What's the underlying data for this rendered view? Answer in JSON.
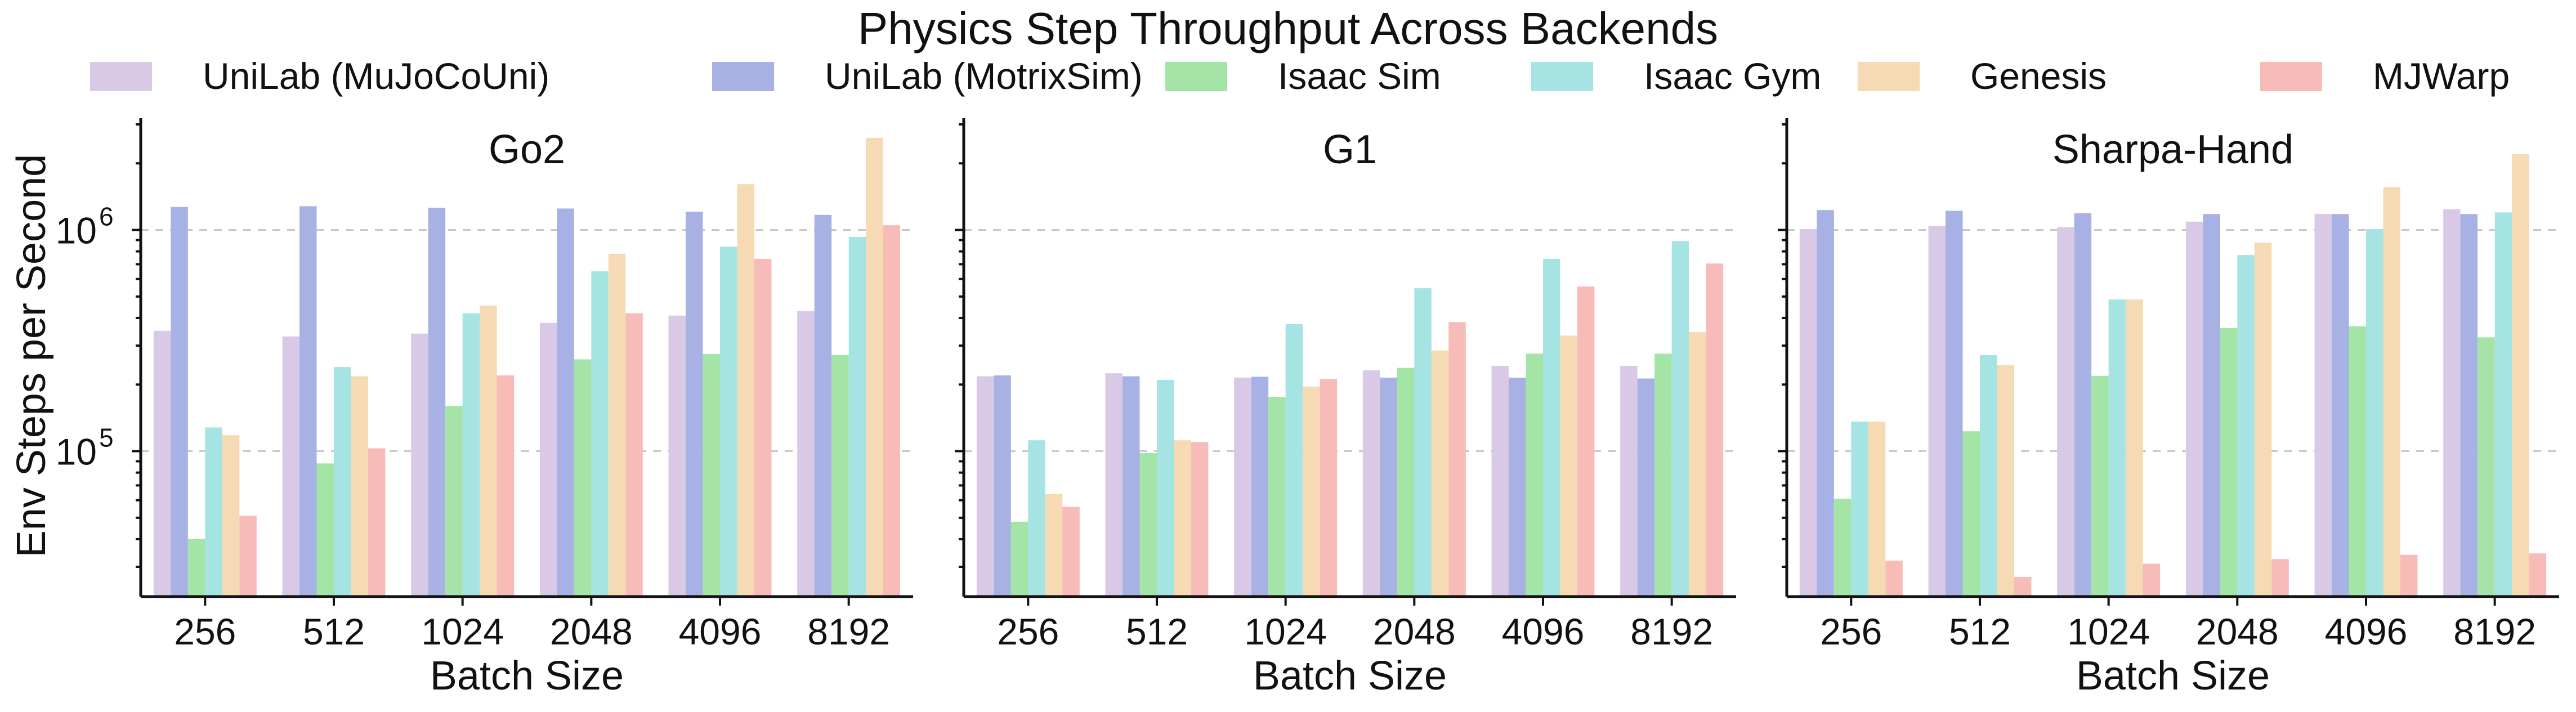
{
  "chart_data": {
    "type": "bar",
    "title": "Physics Step Throughput Across Backends",
    "ylabel": "Env Steps per Second",
    "xlabel": "Batch Size",
    "yscale": "log",
    "ylim": [
      22000,
      3200000
    ],
    "y_ticks": [
      100000,
      1000000
    ],
    "y_tick_labels": [
      [
        "10",
        "5"
      ],
      [
        "10",
        "6"
      ]
    ],
    "grid": "horizontal dashed at major ticks",
    "legend_placement": "top, single row",
    "categories": [
      "256",
      "512",
      "1024",
      "2048",
      "4096",
      "8192"
    ],
    "legend": [
      {
        "name": "UniLab (MuJoCoUni)",
        "color": "#d9c9e6"
      },
      {
        "name": "UniLab (MotrixSim)",
        "color": "#a7b1e3"
      },
      {
        "name": "Isaac Sim",
        "color": "#a4e5a7"
      },
      {
        "name": "Isaac Gym",
        "color": "#a6e3e3"
      },
      {
        "name": "Genesis",
        "color": "#f5dab3"
      },
      {
        "name": "MJWarp",
        "color": "#f7bbb8"
      }
    ],
    "panels": [
      {
        "title": "Go2",
        "series": [
          {
            "values": [
              350000,
              330000,
              340000,
              380000,
              410000,
              430000
            ]
          },
          {
            "values": [
              1270000,
              1280000,
              1260000,
              1250000,
              1210000,
              1170000
            ]
          },
          {
            "values": [
              40000,
              88000,
              160000,
              260000,
              275000,
              272000
            ]
          },
          {
            "values": [
              128000,
              240000,
              420000,
              650000,
              840000,
              930000
            ]
          },
          {
            "values": [
              118000,
              218000,
              455000,
              780000,
              1610000,
              2610000
            ]
          },
          {
            "values": [
              51000,
              103000,
              220000,
              420000,
              740000,
              1050000
            ]
          }
        ]
      },
      {
        "title": "G1",
        "series": [
          {
            "values": [
              218000,
              225000,
              215000,
              232000,
              243000,
              243000
            ]
          },
          {
            "values": [
              220000,
              218000,
              217000,
              215000,
              215000,
              213000
            ]
          },
          {
            "values": [
              48000,
              98000,
              176000,
              238000,
              276000,
              276000
            ]
          },
          {
            "values": [
              112000,
              210000,
              375000,
              545000,
              740000,
              890000
            ]
          },
          {
            "values": [
              64000,
              112000,
              196000,
              285000,
              333000,
              345000
            ]
          },
          {
            "values": [
              56000,
              110000,
              212000,
              383000,
              555000,
              705000
            ]
          }
        ]
      },
      {
        "title": "Sharpa-Hand",
        "series": [
          {
            "values": [
              1010000,
              1040000,
              1030000,
              1090000,
              1180000,
              1240000
            ]
          },
          {
            "values": [
              1230000,
              1220000,
              1190000,
              1180000,
              1180000,
              1180000
            ]
          },
          {
            "values": [
              61000,
              123000,
              219000,
              360000,
              367000,
              327000
            ]
          },
          {
            "values": [
              136000,
              272000,
              485000,
              770000,
              1010000,
              1200000
            ]
          },
          {
            "values": [
              136000,
              245000,
              485000,
              875000,
              1560000,
              2200000
            ]
          },
          {
            "values": [
              32000,
              27000,
              31000,
              32500,
              34000,
              34500
            ]
          }
        ]
      }
    ]
  }
}
